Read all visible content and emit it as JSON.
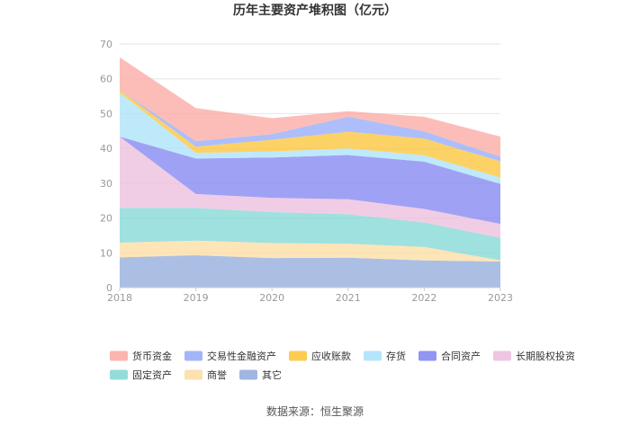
{
  "chart_data": {
    "type": "area",
    "stacked": true,
    "title": "历年主要资产堆积图（亿元）",
    "x": [
      "2018",
      "2019",
      "2020",
      "2021",
      "2022",
      "2023"
    ],
    "ylim": [
      0,
      70
    ],
    "yticks": [
      "0",
      "10",
      "20",
      "30",
      "40",
      "50",
      "60",
      "70"
    ],
    "grid": true,
    "legend_position": "bottom",
    "series": [
      {
        "name": "其它",
        "color": "#8fa9dc",
        "values": [
          8.7,
          9.3,
          8.5,
          8.6,
          7.8,
          7.5
        ]
      },
      {
        "name": "商誉",
        "color": "#fddca0",
        "values": [
          4.2,
          4.2,
          4.3,
          4.0,
          3.9,
          0.3
        ]
      },
      {
        "name": "固定资产",
        "color": "#7fd7d4",
        "values": [
          10.0,
          9.4,
          8.9,
          8.5,
          7.0,
          6.5
        ]
      },
      {
        "name": "长期股权投资",
        "color": "#ebbcdc",
        "values": [
          20.5,
          4.0,
          4.1,
          4.3,
          3.9,
          4.0
        ]
      },
      {
        "name": "合同资产",
        "color": "#7f83f0",
        "values": [
          0.0,
          10.2,
          11.6,
          12.7,
          13.6,
          11.5
        ]
      },
      {
        "name": "存货",
        "color": "#a8e1fa",
        "values": [
          12.6,
          1.6,
          1.7,
          1.9,
          1.8,
          1.8
        ]
      },
      {
        "name": "应收账款",
        "color": "#fbc334",
        "values": [
          0.8,
          1.8,
          3.4,
          4.8,
          4.8,
          4.7
        ]
      },
      {
        "name": "交易性金融资产",
        "color": "#92a8f8",
        "values": [
          0.0,
          1.6,
          1.6,
          4.3,
          2.1,
          1.3
        ]
      },
      {
        "name": "货币资金",
        "color": "#fba7a0",
        "values": [
          9.4,
          9.5,
          4.6,
          1.6,
          4.2,
          5.8
        ]
      }
    ]
  },
  "legend_rows": [
    [
      "货币资金",
      "交易性金融资产",
      "应收账款",
      "存货",
      "合同资产",
      "长期股权投资"
    ],
    [
      "固定资产",
      "商誉",
      "其它"
    ]
  ],
  "source": "数据来源：恒生聚源"
}
